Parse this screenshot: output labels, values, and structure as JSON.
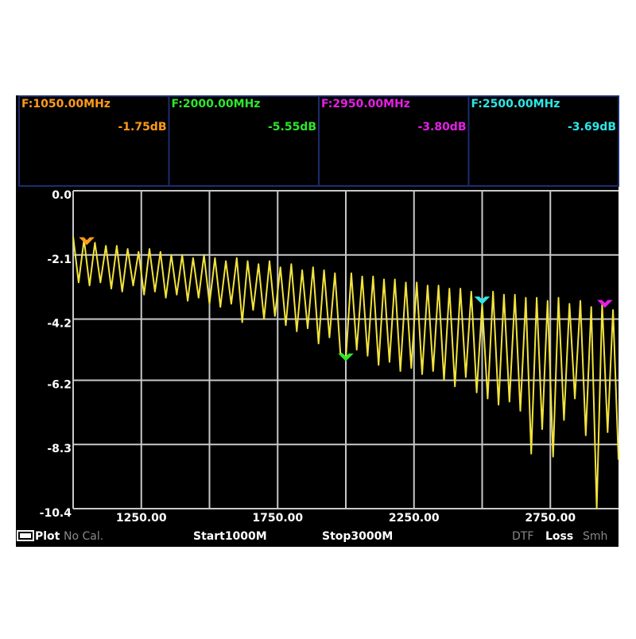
{
  "chart_data": {
    "type": "line",
    "x": [
      1000,
      1020,
      1040,
      1060,
      1080,
      1100,
      1120,
      1140,
      1160,
      1180,
      1200,
      1220,
      1240,
      1260,
      1280,
      1300,
      1320,
      1340,
      1360,
      1380,
      1400,
      1420,
      1440,
      1460,
      1480,
      1500,
      1520,
      1540,
      1560,
      1580,
      1600,
      1620,
      1640,
      1660,
      1680,
      1700,
      1720,
      1740,
      1760,
      1780,
      1800,
      1820,
      1840,
      1860,
      1880,
      1900,
      1920,
      1940,
      1960,
      1980,
      2000,
      2020,
      2040,
      2060,
      2080,
      2100,
      2120,
      2140,
      2160,
      2180,
      2200,
      2220,
      2240,
      2260,
      2280,
      2300,
      2320,
      2340,
      2360,
      2380,
      2400,
      2420,
      2440,
      2460,
      2480,
      2500,
      2520,
      2540,
      2560,
      2580,
      2600,
      2620,
      2640,
      2660,
      2680,
      2700,
      2720,
      2740,
      2760,
      2780,
      2800,
      2820,
      2840,
      2860,
      2880,
      2900,
      2920,
      2940,
      2960,
      2980,
      3000
    ],
    "series": [
      {
        "color": "#f2e33c",
        "values": [
          -1.5,
          -3.0,
          -1.6,
          -3.1,
          -1.7,
          -3.0,
          -1.8,
          -3.2,
          -1.8,
          -3.3,
          -1.9,
          -3.1,
          -2.0,
          -3.4,
          -1.9,
          -3.3,
          -2.0,
          -3.5,
          -2.1,
          -3.4,
          -2.1,
          -3.6,
          -2.2,
          -3.5,
          -2.1,
          -3.7,
          -2.2,
          -3.8,
          -2.3,
          -3.7,
          -2.2,
          -4.3,
          -2.3,
          -3.9,
          -2.4,
          -4.2,
          -2.3,
          -4.1,
          -2.5,
          -4.4,
          -2.4,
          -4.6,
          -2.6,
          -4.5,
          -2.5,
          -5.0,
          -2.6,
          -4.8,
          -2.7,
          -5.3,
          -5.5,
          -2.7,
          -5.2,
          -2.8,
          -5.4,
          -2.8,
          -5.7,
          -2.9,
          -5.6,
          -2.9,
          -5.9,
          -3.0,
          -5.8,
          -3.0,
          -6.0,
          -3.1,
          -5.9,
          -3.1,
          -6.2,
          -3.2,
          -6.4,
          -3.2,
          -6.1,
          -3.3,
          -6.6,
          -3.7,
          -6.8,
          -3.3,
          -7.0,
          -3.4,
          -6.9,
          -3.4,
          -7.2,
          -3.5,
          -8.6,
          -3.5,
          -7.8,
          -3.6,
          -8.7,
          -3.5,
          -7.5,
          -3.7,
          -6.8,
          -3.6,
          -8.0,
          -3.8,
          -10.4,
          -3.7,
          -7.9,
          -3.9,
          -8.8
        ]
      }
    ],
    "xlim": [
      1000,
      3000
    ],
    "xticks": [
      {
        "value": 1250,
        "label": "1250.00"
      },
      {
        "value": 1750,
        "label": "1750.00"
      },
      {
        "value": 2250,
        "label": "2250.00"
      },
      {
        "value": 2750,
        "label": "2750.00"
      }
    ],
    "xgrid": [
      1250,
      1500,
      1750,
      2000,
      2250,
      2500,
      2750
    ],
    "ylim": [
      -10.4,
      0
    ],
    "yticks": [
      {
        "value": 0,
        "label": "0.0"
      },
      -2.1,
      -4.2,
      -6.2,
      -8.3,
      -10.4
    ],
    "grid": true,
    "markers": [
      {
        "label": "F:1050.00MHz",
        "value_label": "-1.75dB",
        "freq": 1050,
        "value": -1.75,
        "color": "#ff9a1a"
      },
      {
        "label": "F:2000.00MHz",
        "value_label": "-5.55dB",
        "freq": 2000,
        "value": -5.55,
        "color": "#2ee62e"
      },
      {
        "label": "F:2950.00MHz",
        "value_label": "-3.80dB",
        "freq": 2950,
        "value": -3.8,
        "color": "#e61ee6"
      },
      {
        "label": "F:2500.00MHz",
        "value_label": "-3.69dB",
        "freq": 2500,
        "value": -3.69,
        "color": "#2ee6e6"
      }
    ]
  },
  "status": {
    "mode": "Plot",
    "cal": "No Cal.",
    "start": "Start1000M",
    "stop": "Stop3000M",
    "dtf": "DTF",
    "loss": "Loss",
    "smith": "Smh"
  }
}
